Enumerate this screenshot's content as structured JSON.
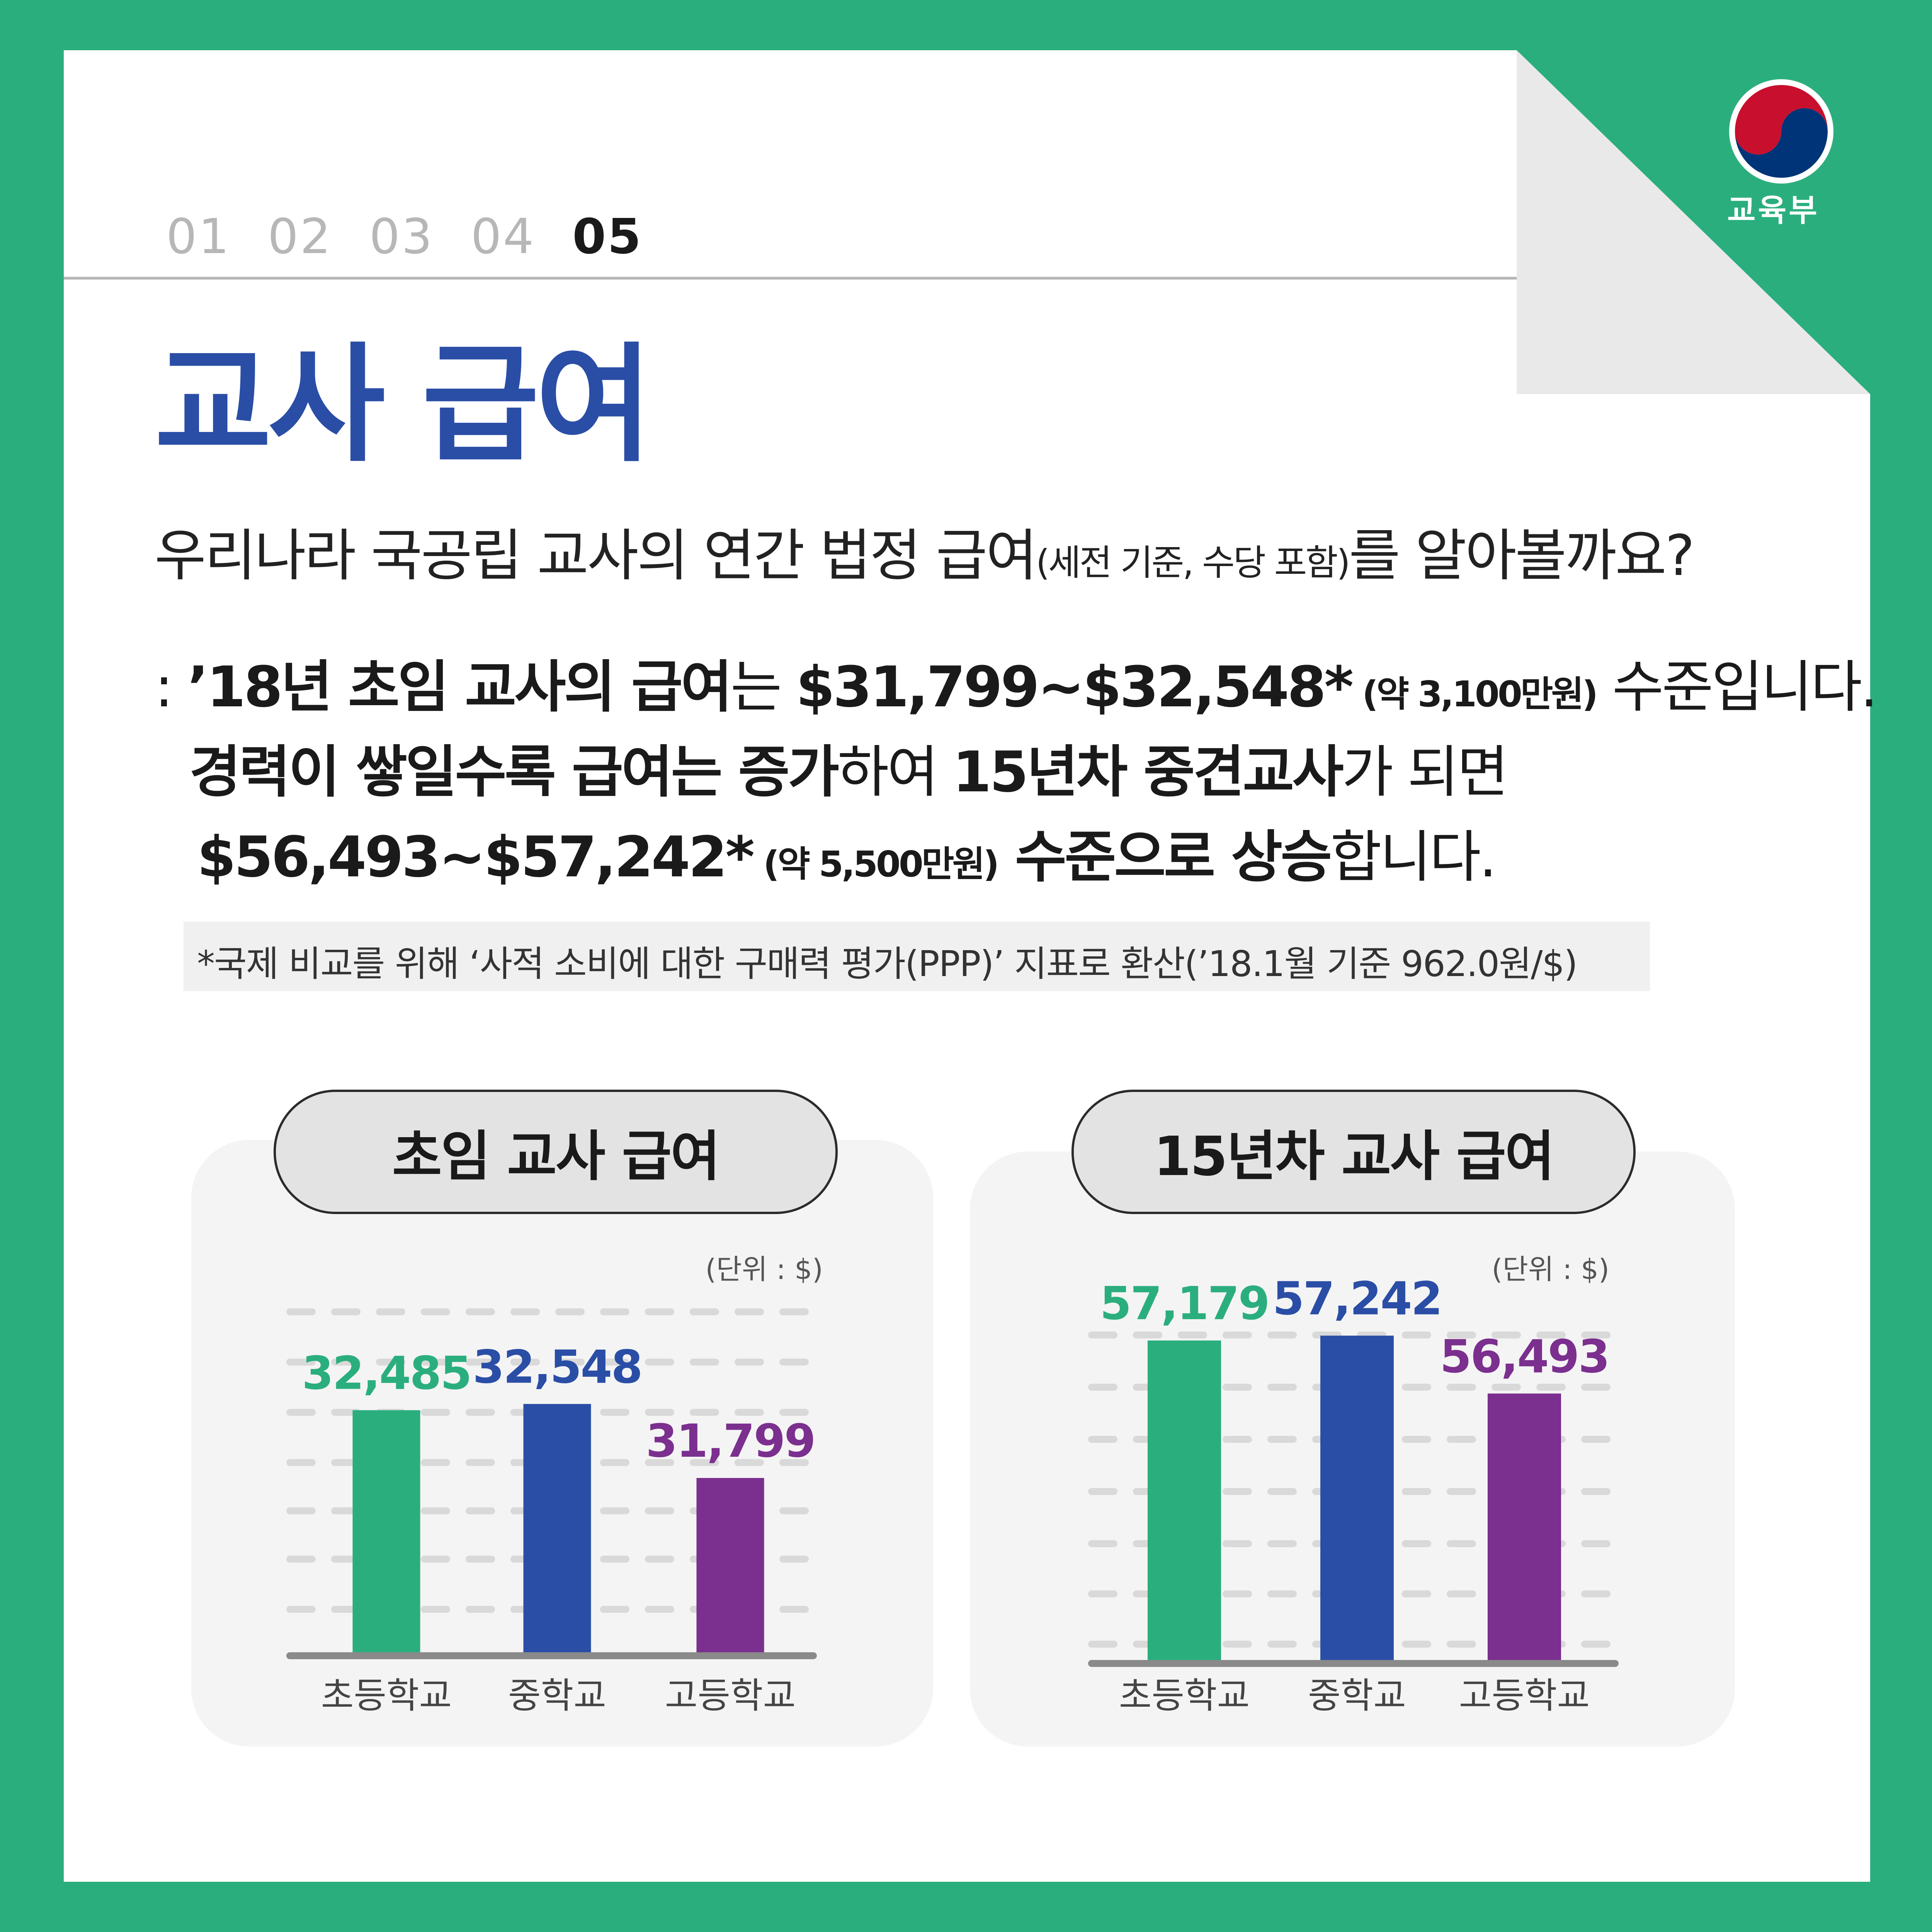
{
  "header": {
    "pages": [
      "01",
      "02",
      "03",
      "04",
      "05"
    ],
    "active_page": "05",
    "logo_label": "교육부"
  },
  "title": "교사 급여",
  "intro": {
    "main": "우리나라 국공립 교사의 연간 법정 급여",
    "note": "(세전 기준, 수당 포함)",
    "tail": "를 알아볼까요?"
  },
  "body": {
    "l1_prefix": ": ",
    "l1_a": "’18년 초임 교사의 급여",
    "l1_b": "는 ",
    "l1_c": "$31,799~$32,548*",
    "l1_d": " (약 3,100만원)",
    "l1_e": " 수준입니다.",
    "l2_a": "경력이 쌓일수록 급여는 증가",
    "l2_b": "하여 ",
    "l2_c": "15년차 중견교사",
    "l2_d": "가 되면",
    "l3_a": "$56,493~$57,242*",
    "l3_b": " (약 5,500만원)",
    "l3_c": " 수준으로 상승",
    "l3_d": "합니다."
  },
  "footnote": "*국제 비교를 위해 ‘사적 소비에 대한 구매력 평가(PPP)’ 지표로 환산(’18.1월 기준 962.0원/$)",
  "colors": {
    "border": "#2bae7e",
    "title": "#2a4ea6",
    "elementary": "#2bae7e",
    "middle": "#2a4ea6",
    "high": "#7b2f8e"
  },
  "chart_data": [
    {
      "type": "bar",
      "title": "초임 교사 급여",
      "unit_label": "(단위 : $)",
      "categories": [
        "초등학교",
        "중학교",
        "고등학교"
      ],
      "values": [
        32485,
        32548,
        31799
      ],
      "value_labels": [
        "32,485",
        "32,548",
        "31,799"
      ],
      "colors": [
        "#2bae7e",
        "#2a4ea6",
        "#7b2f8e"
      ],
      "ylim": [
        30000,
        33500
      ],
      "grid": true
    },
    {
      "type": "bar",
      "title": "15년차 교사 급여",
      "unit_label": "(단위 : $)",
      "categories": [
        "초등학교",
        "중학교",
        "고등학교"
      ],
      "values": [
        57179,
        57242,
        56493
      ],
      "value_labels": [
        "57,179",
        "57,242",
        "56,493"
      ],
      "colors": [
        "#2bae7e",
        "#2a4ea6",
        "#7b2f8e"
      ],
      "ylim": [
        53000,
        57500
      ],
      "grid": true
    }
  ]
}
